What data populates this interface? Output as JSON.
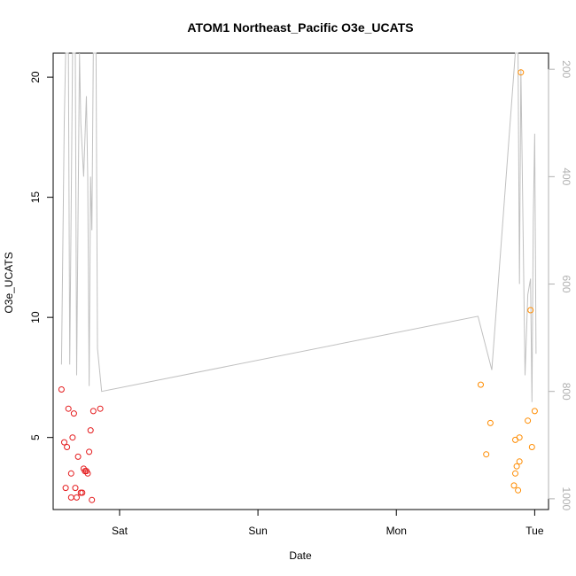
{
  "chart_data": {
    "type": "scatter",
    "title": "ATOM1 Northeast_Pacific O3e_UCATS",
    "xlabel": "Date",
    "ylabel": "O3e_UCATS",
    "x_unit": "days",
    "x_ticks": [
      {
        "label": "Sat",
        "value": 1.0
      },
      {
        "label": "Sun",
        "value": 2.0
      },
      {
        "label": "Mon",
        "value": 3.0
      },
      {
        "label": "Tue",
        "value": 4.0
      }
    ],
    "y_ticks": [
      5,
      10,
      15,
      20
    ],
    "xlim": [
      0.52,
      4.1
    ],
    "ylim": [
      2.0,
      21.0
    ],
    "y2_ticks": [
      200,
      400,
      600,
      800,
      1000
    ],
    "y2lim": [
      1020,
      170
    ],
    "y2_reversed": true,
    "colors": {
      "first_flight": "#e41a1c",
      "second_flight": "#ff8c00",
      "pressure_line": "#c0c0c0",
      "axis": "#000000",
      "right_axis": "#b0b0b0"
    },
    "series": [
      {
        "color": "first_flight",
        "points": [
          [
            0.58,
            7.0
          ],
          [
            0.6,
            4.8
          ],
          [
            0.61,
            2.9
          ],
          [
            0.62,
            4.6
          ],
          [
            0.63,
            6.2
          ],
          [
            0.65,
            3.5
          ],
          [
            0.65,
            2.5
          ],
          [
            0.66,
            5.0
          ],
          [
            0.67,
            6.0
          ],
          [
            0.68,
            2.9
          ],
          [
            0.69,
            2.5
          ],
          [
            0.7,
            4.2
          ],
          [
            0.72,
            2.7
          ],
          [
            0.73,
            2.7
          ],
          [
            0.74,
            3.7
          ],
          [
            0.75,
            3.6
          ],
          [
            0.76,
            3.6
          ],
          [
            0.77,
            3.5
          ],
          [
            0.78,
            4.4
          ],
          [
            0.79,
            5.3
          ],
          [
            0.8,
            2.4
          ],
          [
            0.81,
            6.1
          ],
          [
            0.86,
            6.2
          ]
        ]
      },
      {
        "color": "second_flight",
        "points": [
          [
            3.61,
            7.2
          ],
          [
            3.65,
            4.3
          ],
          [
            3.68,
            5.6
          ],
          [
            3.85,
            3.0
          ],
          [
            3.86,
            3.5
          ],
          [
            3.86,
            4.9
          ],
          [
            3.87,
            3.8
          ],
          [
            3.88,
            2.8
          ],
          [
            3.89,
            4.0
          ],
          [
            3.89,
            5.0
          ],
          [
            3.9,
            20.2
          ],
          [
            3.95,
            5.7
          ],
          [
            3.97,
            10.3
          ],
          [
            3.98,
            4.6
          ],
          [
            4.0,
            6.1
          ]
        ]
      }
    ],
    "pressure_line": {
      "axis": "y2",
      "points": [
        [
          0.58,
          750
        ],
        [
          0.6,
          300
        ],
        [
          0.61,
          170
        ],
        [
          0.63,
          170
        ],
        [
          0.64,
          750
        ],
        [
          0.66,
          170
        ],
        [
          0.68,
          170
        ],
        [
          0.69,
          770
        ],
        [
          0.71,
          170
        ],
        [
          0.72,
          300
        ],
        [
          0.74,
          400
        ],
        [
          0.76,
          250
        ],
        [
          0.77,
          400
        ],
        [
          0.78,
          790
        ],
        [
          0.79,
          400
        ],
        [
          0.8,
          500
        ],
        [
          0.81,
          170
        ],
        [
          0.83,
          170
        ],
        [
          0.84,
          720
        ],
        [
          0.87,
          800
        ],
        [
          3.59,
          660
        ],
        [
          3.69,
          760
        ],
        [
          3.86,
          170
        ],
        [
          3.88,
          170
        ],
        [
          3.89,
          600
        ],
        [
          3.9,
          200
        ],
        [
          3.93,
          770
        ],
        [
          3.95,
          620
        ],
        [
          3.97,
          590
        ],
        [
          3.98,
          820
        ],
        [
          3.99,
          480
        ],
        [
          4.0,
          320
        ],
        [
          4.01,
          730
        ]
      ]
    }
  }
}
